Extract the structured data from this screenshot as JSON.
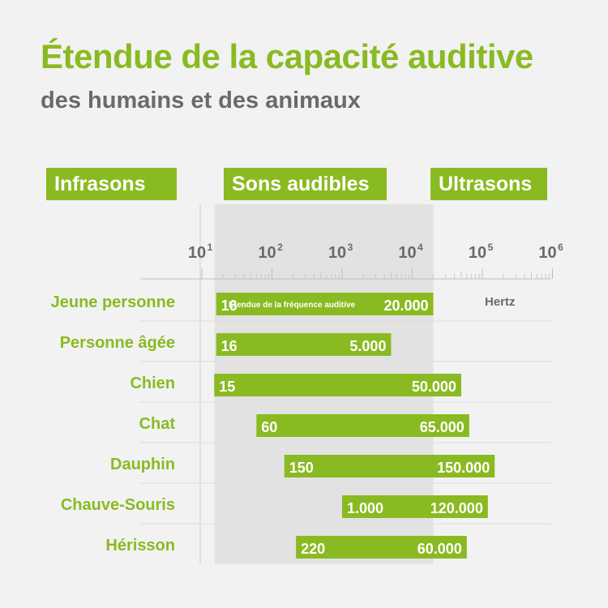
{
  "header": {
    "title": "Étendue de la capacité auditive",
    "subtitle": "des humains et des animaux"
  },
  "zones": {
    "infra": "Infrasons",
    "audible": "Sons audibles",
    "ultra": "Ultrasons"
  },
  "colors": {
    "accent": "#8aba22",
    "audible_band": "#e2e2e2",
    "text_green": "#8aba22",
    "text_gray": "#6a6a6a"
  },
  "chart_data": {
    "type": "bar",
    "orientation": "horizontal",
    "x_scale": "log",
    "xlim": [
      10,
      1000000
    ],
    "x_ticks": [
      {
        "value": 10,
        "label": "10",
        "exp": "1"
      },
      {
        "value": 100,
        "label": "10",
        "exp": "2"
      },
      {
        "value": 1000,
        "label": "10",
        "exp": "3"
      },
      {
        "value": 10000,
        "label": "10",
        "exp": "4"
      },
      {
        "value": 100000,
        "label": "10",
        "exp": "5"
      },
      {
        "value": 1000000,
        "label": "10",
        "exp": "6"
      }
    ],
    "unit_label": "Hertz",
    "bar_annotation": "Etendue de la fréquence auditive",
    "audible_range": [
      16,
      20000
    ],
    "series": [
      {
        "category": "Jeune personne",
        "min": 16,
        "max": 20000,
        "min_label": "16",
        "max_label": "20.000"
      },
      {
        "category": "Personne âgée",
        "min": 16,
        "max": 5000,
        "min_label": "16",
        "max_label": "5.000"
      },
      {
        "category": "Chien",
        "min": 15,
        "max": 50000,
        "min_label": "15",
        "max_label": "50.000"
      },
      {
        "category": "Chat",
        "min": 60,
        "max": 65000,
        "min_label": "60",
        "max_label": "65.000"
      },
      {
        "category": "Dauphin",
        "min": 150,
        "max": 150000,
        "min_label": "150",
        "max_label": "150.000"
      },
      {
        "category": "Chauve-Souris",
        "min": 1000,
        "max": 120000,
        "min_label": "1.000",
        "max_label": "120.000"
      },
      {
        "category": "Hérisson",
        "min": 220,
        "max": 60000,
        "min_label": "220",
        "max_label": "60.000"
      }
    ]
  }
}
